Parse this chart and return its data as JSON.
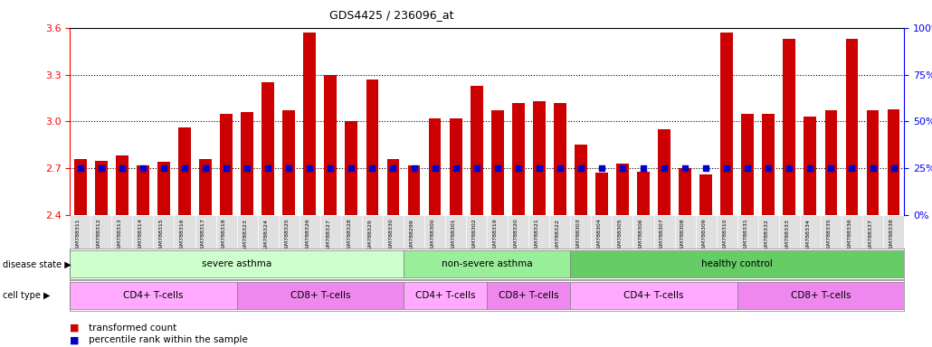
{
  "title": "GDS4425 / 236096_at",
  "samples": [
    "GSM788311",
    "GSM788312",
    "GSM788313",
    "GSM788314",
    "GSM788315",
    "GSM788316",
    "GSM788317",
    "GSM788318",
    "GSM788323",
    "GSM788324",
    "GSM788325",
    "GSM788326",
    "GSM788327",
    "GSM788328",
    "GSM788329",
    "GSM788330",
    "GSM788299",
    "GSM788300",
    "GSM788301",
    "GSM788302",
    "GSM788319",
    "GSM788320",
    "GSM788321",
    "GSM788322",
    "GSM788303",
    "GSM788304",
    "GSM788305",
    "GSM788306",
    "GSM788307",
    "GSM788308",
    "GSM788309",
    "GSM788310",
    "GSM788331",
    "GSM788332",
    "GSM788333",
    "GSM788334",
    "GSM788335",
    "GSM788336",
    "GSM788337",
    "GSM788338"
  ],
  "transformed_count": [
    2.76,
    2.75,
    2.78,
    2.72,
    2.74,
    2.96,
    2.76,
    3.05,
    3.06,
    3.25,
    3.07,
    3.57,
    3.3,
    3.0,
    3.27,
    2.76,
    2.72,
    3.02,
    3.02,
    3.23,
    3.07,
    3.12,
    3.13,
    3.12,
    2.85,
    2.67,
    2.73,
    2.68,
    2.95,
    2.7,
    2.66,
    3.57,
    3.05,
    3.05,
    3.53,
    3.03,
    3.07,
    3.53,
    3.07,
    3.08
  ],
  "percentile_rank": [
    25,
    25,
    25,
    25,
    25,
    25,
    25,
    25,
    25,
    25,
    25,
    25,
    25,
    25,
    25,
    25,
    25,
    25,
    25,
    25,
    25,
    25,
    25,
    25,
    25,
    25,
    25,
    25,
    25,
    25,
    25,
    25,
    25,
    25,
    25,
    25,
    25,
    25,
    25,
    25
  ],
  "ylim_left": [
    2.4,
    3.6
  ],
  "ylim_right": [
    0,
    100
  ],
  "yticks_left": [
    2.4,
    2.7,
    3.0,
    3.3,
    3.6
  ],
  "yticks_right": [
    0,
    25,
    50,
    75,
    100
  ],
  "bar_color": "#cc0000",
  "marker_color": "#0000cc",
  "disease_state_groups": [
    {
      "label": "severe asthma",
      "start": 0,
      "end": 15,
      "color": "#ccffcc"
    },
    {
      "label": "non-severe asthma",
      "start": 16,
      "end": 23,
      "color": "#99ee99"
    },
    {
      "label": "healthy control",
      "start": 24,
      "end": 39,
      "color": "#66cc66"
    }
  ],
  "cell_type_groups": [
    {
      "label": "CD4+ T-cells",
      "start": 0,
      "end": 7,
      "color": "#ffaaff"
    },
    {
      "label": "CD8+ T-cells",
      "start": 8,
      "end": 15,
      "color": "#ee88ee"
    },
    {
      "label": "CD4+ T-cells",
      "start": 16,
      "end": 19,
      "color": "#ffaaff"
    },
    {
      "label": "CD8+ T-cells",
      "start": 20,
      "end": 23,
      "color": "#ee88ee"
    },
    {
      "label": "CD4+ T-cells",
      "start": 24,
      "end": 31,
      "color": "#ffaaff"
    },
    {
      "label": "CD8+ T-cells",
      "start": 32,
      "end": 39,
      "color": "#ee88ee"
    }
  ]
}
